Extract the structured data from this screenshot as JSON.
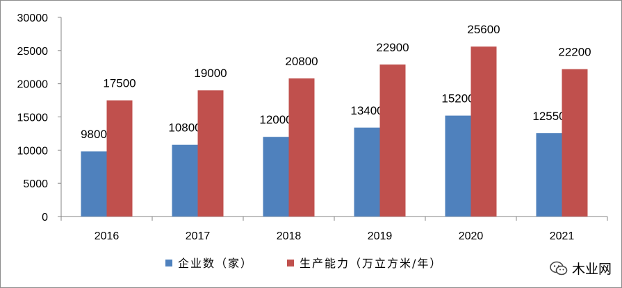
{
  "chart_data": {
    "type": "bar",
    "categories": [
      "2016",
      "2017",
      "2018",
      "2019",
      "2020",
      "2021"
    ],
    "series": [
      {
        "name": "企业数（家）",
        "values": [
          9800,
          10800,
          12000,
          13400,
          15200,
          12550
        ],
        "color": "#4f81bd"
      },
      {
        "name": "生产能力（万立方米/年）",
        "values": [
          17500,
          19000,
          20800,
          22900,
          25600,
          22200
        ],
        "color": "#c0504d"
      }
    ],
    "ylim": [
      0,
      30000
    ],
    "yticks": [
      0,
      5000,
      10000,
      15000,
      20000,
      25000,
      30000
    ],
    "grid": false,
    "legend_position": "bottom",
    "data_labels": true
  },
  "watermark": {
    "text": "木业网",
    "icon": "wechat-icon"
  }
}
